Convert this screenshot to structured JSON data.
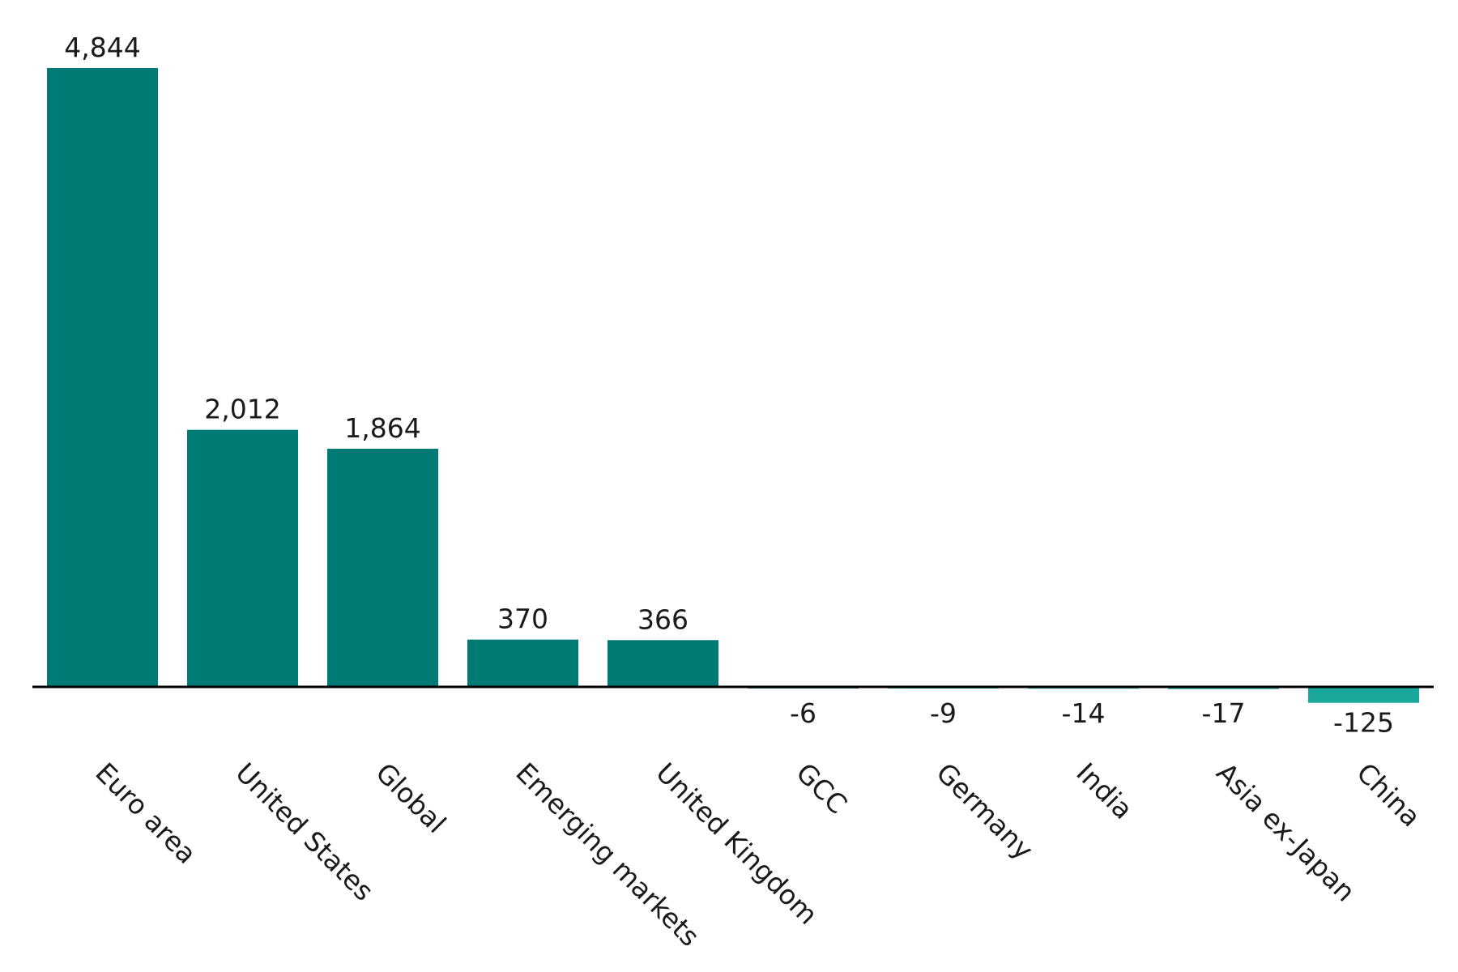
{
  "chart_data": {
    "type": "bar",
    "categories": [
      "Euro area",
      "United States",
      "Global",
      "Emerging markets",
      "United Kingdom",
      "GCC",
      "Germany",
      "India",
      "Asia ex-Japan",
      "China"
    ],
    "values": [
      4844,
      2012,
      1864,
      370,
      366,
      -6,
      -9,
      -14,
      -17,
      -125
    ],
    "value_labels": [
      "4,844",
      "2,012",
      "1,864",
      "370",
      "366",
      "-6",
      "-9",
      "-14",
      "-17",
      "-125"
    ],
    "bar_colors": [
      "#007a74",
      "#007a74",
      "#007a74",
      "#007a74",
      "#007a74",
      "#007a74",
      "#1ba89c",
      "#1ba89c",
      "#1ba89c",
      "#1ba89c"
    ],
    "axis_color": "#000000",
    "grid": false,
    "legend": "none",
    "title": "",
    "xlabel": "",
    "ylabel": "",
    "ylim": [
      -200,
      5000
    ]
  }
}
